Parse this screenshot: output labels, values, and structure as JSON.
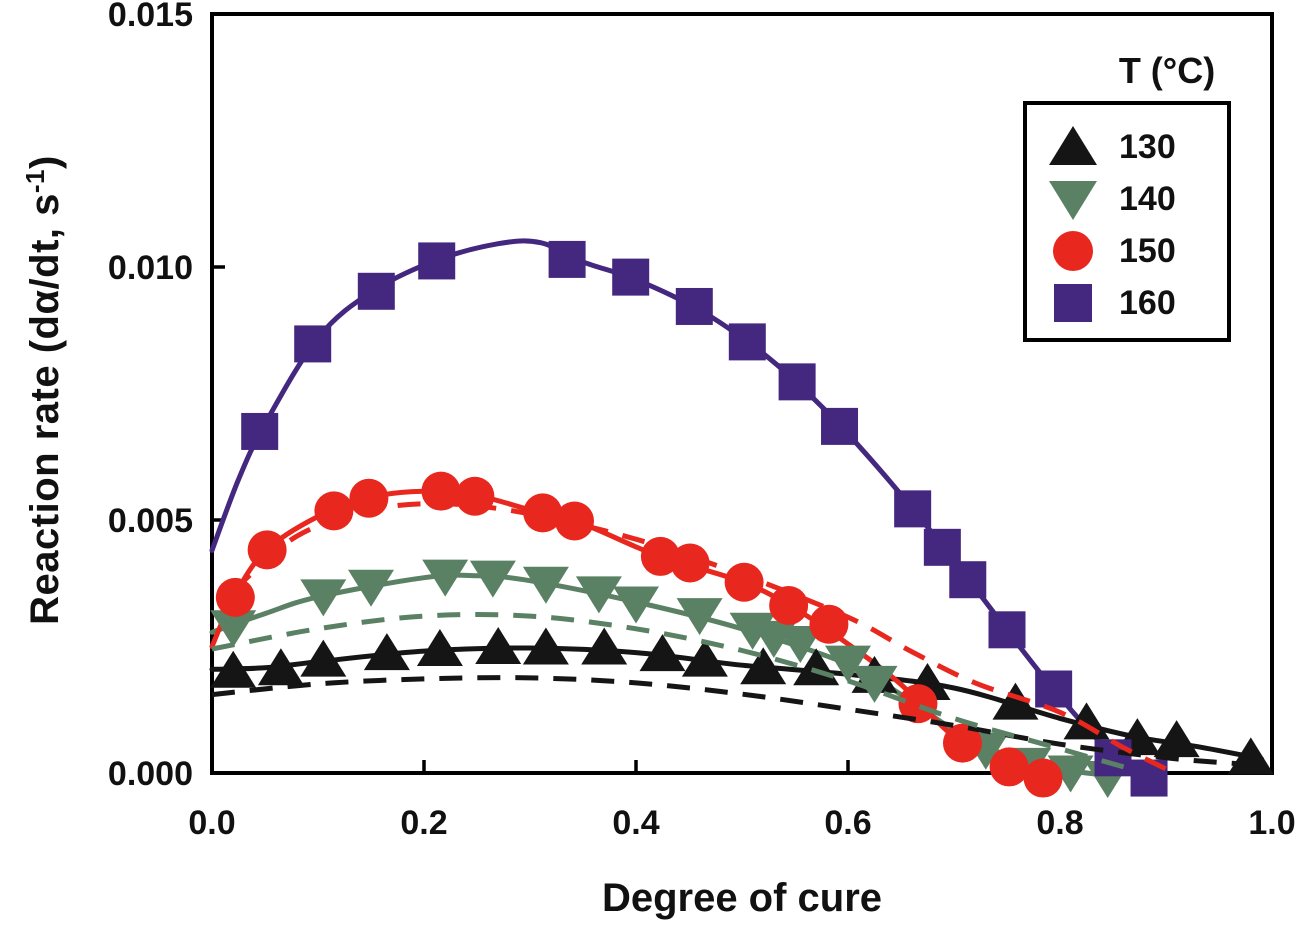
{
  "labels": {
    "y_pre": "Reaction rate (dα/dt, s",
    "y_sup": "-1",
    "y_post": ")",
    "x": "Degree of cure"
  },
  "legend": {
    "title": "T (°C)",
    "position": "upper right",
    "items": [
      {
        "label": "130",
        "marker": "triangle-up",
        "color": "#151515"
      },
      {
        "label": "140",
        "marker": "triangle-down",
        "color": "#5b8165"
      },
      {
        "label": "150",
        "marker": "circle",
        "color": "#e8281e"
      },
      {
        "label": "160",
        "marker": "square",
        "color": "#44287f"
      }
    ]
  },
  "chart_data": {
    "type": "line",
    "title": "",
    "xlabel": "Degree of cure",
    "ylabel": "Reaction rate (dα/dt, s⁻¹)",
    "xlim": [
      0.0,
      1.0
    ],
    "ylim": [
      0.0,
      0.015
    ],
    "grid": false,
    "legend_position": "upper right",
    "axis_color": "#000000",
    "xticks": [
      {
        "v": 0.0,
        "label": "0.0"
      },
      {
        "v": 0.2,
        "label": "0.2"
      },
      {
        "v": 0.4,
        "label": "0.4"
      },
      {
        "v": 0.6,
        "label": "0.6"
      },
      {
        "v": 0.8,
        "label": "0.8"
      },
      {
        "v": 1.0,
        "label": "1.0"
      }
    ],
    "yticks": [
      {
        "v": 0.0,
        "label": "0.000"
      },
      {
        "v": 0.005,
        "label": "0.005"
      },
      {
        "v": 0.01,
        "label": "0.010"
      },
      {
        "v": 0.015,
        "label": "0.015"
      }
    ],
    "series": [
      {
        "name": "130",
        "temperature_c": 130,
        "color": "#151515",
        "marker": "triangle-up",
        "markers": [
          [
            0.02,
            0.002
          ],
          [
            0.065,
            0.00205
          ],
          [
            0.105,
            0.00222
          ],
          [
            0.165,
            0.00235
          ],
          [
            0.215,
            0.00243
          ],
          [
            0.27,
            0.00247
          ],
          [
            0.315,
            0.00246
          ],
          [
            0.37,
            0.00246
          ],
          [
            0.425,
            0.00233
          ],
          [
            0.465,
            0.00222
          ],
          [
            0.52,
            0.00207
          ],
          [
            0.57,
            0.00205
          ],
          [
            0.625,
            0.0019
          ],
          [
            0.675,
            0.00176
          ],
          [
            0.758,
            0.00137
          ],
          [
            0.825,
            0.00098
          ],
          [
            0.873,
            0.00067
          ],
          [
            0.91,
            0.00063
          ],
          [
            0.98,
            0.00029
          ]
        ],
        "line": [
          [
            0.0,
            0.00205
          ],
          [
            0.05,
            0.00208
          ],
          [
            0.1,
            0.0022
          ],
          [
            0.2,
            0.00241
          ],
          [
            0.3,
            0.00247
          ],
          [
            0.4,
            0.00238
          ],
          [
            0.5,
            0.00213
          ],
          [
            0.6,
            0.00195
          ],
          [
            0.7,
            0.00168
          ],
          [
            0.8,
            0.00108
          ],
          [
            0.87,
            0.00072
          ],
          [
            0.93,
            0.00052
          ],
          [
            0.99,
            0.00028
          ]
        ],
        "dash": [
          [
            0.0,
            0.00155
          ],
          [
            0.1,
            0.00176
          ],
          [
            0.2,
            0.00186
          ],
          [
            0.3,
            0.00188
          ],
          [
            0.4,
            0.00178
          ],
          [
            0.5,
            0.00156
          ],
          [
            0.6,
            0.00126
          ],
          [
            0.7,
            0.00094
          ],
          [
            0.8,
            0.00057
          ],
          [
            0.9,
            0.0003
          ],
          [
            0.97,
            0.00018
          ]
        ]
      },
      {
        "name": "140",
        "temperature_c": 140,
        "color": "#5b8165",
        "marker": "triangle-down",
        "markers": [
          [
            0.02,
            0.0029
          ],
          [
            0.105,
            0.00351
          ],
          [
            0.15,
            0.0037
          ],
          [
            0.22,
            0.0039
          ],
          [
            0.265,
            0.00388
          ],
          [
            0.315,
            0.00376
          ],
          [
            0.365,
            0.00357
          ],
          [
            0.4,
            0.00337
          ],
          [
            0.46,
            0.00314
          ],
          [
            0.51,
            0.00285
          ],
          [
            0.53,
            0.00269
          ],
          [
            0.555,
            0.00259
          ],
          [
            0.6,
            0.0022
          ],
          [
            0.625,
            0.0018
          ],
          [
            0.73,
            0.00048
          ],
          [
            0.77,
            0.00018
          ],
          [
            0.81,
            3e-05
          ],
          [
            0.845,
            -8e-05
          ]
        ],
        "line": [
          [
            0.0,
            0.00278
          ],
          [
            0.05,
            0.00315
          ],
          [
            0.1,
            0.00348
          ],
          [
            0.2,
            0.00386
          ],
          [
            0.25,
            0.0039
          ],
          [
            0.3,
            0.0038
          ],
          [
            0.4,
            0.00338
          ],
          [
            0.5,
            0.00285
          ],
          [
            0.6,
            0.00215
          ],
          [
            0.65,
            0.00155
          ],
          [
            0.7,
            0.00085
          ],
          [
            0.75,
            0.00035
          ],
          [
            0.8,
            8e-05
          ],
          [
            0.845,
            -5e-05
          ]
        ],
        "dash": [
          [
            0.0,
            0.00245
          ],
          [
            0.1,
            0.00285
          ],
          [
            0.2,
            0.0031
          ],
          [
            0.3,
            0.0031
          ],
          [
            0.4,
            0.00285
          ],
          [
            0.5,
            0.00242
          ],
          [
            0.6,
            0.00182
          ],
          [
            0.7,
            0.00108
          ],
          [
            0.8,
            0.00048
          ],
          [
            0.86,
            0.00012
          ]
        ]
      },
      {
        "name": "150",
        "temperature_c": 150,
        "color": "#e8281e",
        "marker": "circle",
        "markers": [
          [
            0.022,
            0.00347
          ],
          [
            0.052,
            0.00441
          ],
          [
            0.115,
            0.00518
          ],
          [
            0.148,
            0.00543
          ],
          [
            0.216,
            0.00557
          ],
          [
            0.248,
            0.00547
          ],
          [
            0.312,
            0.00514
          ],
          [
            0.342,
            0.00498
          ],
          [
            0.423,
            0.00428
          ],
          [
            0.451,
            0.00415
          ],
          [
            0.502,
            0.00377
          ],
          [
            0.544,
            0.00331
          ],
          [
            0.582,
            0.00294
          ],
          [
            0.666,
            0.00137
          ],
          [
            0.708,
            0.00059
          ],
          [
            0.752,
            0.00012
          ],
          [
            0.784,
            -0.0001
          ]
        ],
        "line": [
          [
            0.0,
            0.0025
          ],
          [
            0.02,
            0.00345
          ],
          [
            0.05,
            0.00438
          ],
          [
            0.1,
            0.00507
          ],
          [
            0.15,
            0.00545
          ],
          [
            0.2,
            0.00557
          ],
          [
            0.25,
            0.00548
          ],
          [
            0.3,
            0.0052
          ],
          [
            0.35,
            0.00492
          ],
          [
            0.42,
            0.0043
          ],
          [
            0.5,
            0.00378
          ],
          [
            0.55,
            0.00325
          ],
          [
            0.6,
            0.00255
          ],
          [
            0.65,
            0.00175
          ],
          [
            0.7,
            0.00072
          ],
          [
            0.75,
            0.00018
          ],
          [
            0.79,
            -5e-05
          ]
        ],
        "dash": [
          [
            0.02,
            0.0036
          ],
          [
            0.08,
            0.00468
          ],
          [
            0.15,
            0.0052
          ],
          [
            0.22,
            0.00532
          ],
          [
            0.3,
            0.00512
          ],
          [
            0.4,
            0.00462
          ],
          [
            0.5,
            0.00392
          ],
          [
            0.6,
            0.00308
          ],
          [
            0.66,
            0.0024
          ],
          [
            0.72,
            0.00178
          ],
          [
            0.8,
            0.0012
          ],
          [
            0.86,
            0.0005
          ],
          [
            0.9,
            8e-05
          ]
        ]
      },
      {
        "name": "160",
        "temperature_c": 160,
        "color": "#44287f",
        "marker": "square",
        "markers": [
          [
            0.045,
            0.00675
          ],
          [
            0.095,
            0.00848
          ],
          [
            0.155,
            0.00952
          ],
          [
            0.212,
            0.01012
          ],
          [
            0.335,
            0.01015
          ],
          [
            0.395,
            0.0098
          ],
          [
            0.455,
            0.00922
          ],
          [
            0.505,
            0.00852
          ],
          [
            0.552,
            0.00773
          ],
          [
            0.592,
            0.00685
          ],
          [
            0.661,
            0.00522
          ],
          [
            0.689,
            0.00446
          ],
          [
            0.713,
            0.00382
          ],
          [
            0.75,
            0.00283
          ],
          [
            0.794,
            0.00166
          ],
          [
            0.85,
            0.0003
          ],
          [
            0.884,
            -0.0001
          ]
        ],
        "line": [
          [
            0.0,
            0.0044
          ],
          [
            0.025,
            0.0058
          ],
          [
            0.05,
            0.0069
          ],
          [
            0.1,
            0.0086
          ],
          [
            0.15,
            0.0095
          ],
          [
            0.21,
            0.01012
          ],
          [
            0.27,
            0.01046
          ],
          [
            0.31,
            0.01048
          ],
          [
            0.35,
            0.0101
          ],
          [
            0.4,
            0.00975
          ],
          [
            0.46,
            0.00915
          ],
          [
            0.51,
            0.00845
          ],
          [
            0.55,
            0.00775
          ],
          [
            0.6,
            0.0067
          ],
          [
            0.66,
            0.00525
          ],
          [
            0.72,
            0.00365
          ],
          [
            0.76,
            0.00255
          ],
          [
            0.8,
            0.0015
          ],
          [
            0.85,
            0.00035
          ],
          [
            0.88,
            0.0
          ]
        ],
        "dash": []
      }
    ]
  }
}
